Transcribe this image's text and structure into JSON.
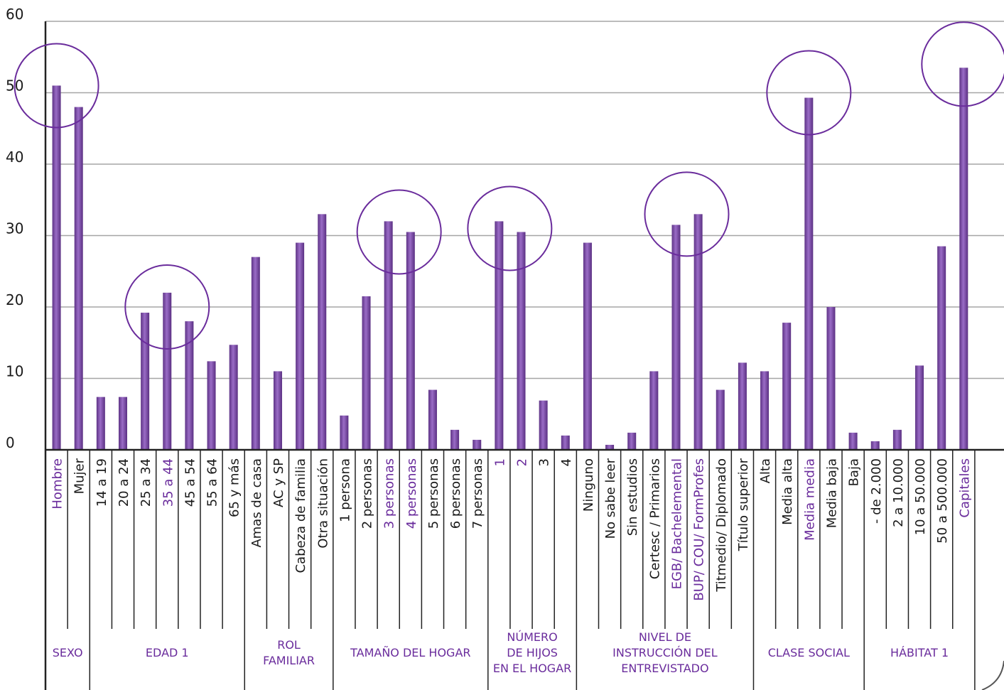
{
  "chart_data": {
    "type": "bar",
    "ylim": [
      0,
      60
    ],
    "yticks": [
      "0",
      "10",
      "20",
      "30",
      "40",
      "50",
      "60"
    ],
    "grid": true,
    "bar_color": "#7b4aa6",
    "axis_color": "#222222",
    "grid_color": "#a6a6a6",
    "circle_color": "#6a2c9c",
    "highlight_label_color": "#6a2c9c",
    "label_color": "#1a1a1a",
    "categories": [
      "Hombre",
      "Mujer",
      "14 a 19",
      "20 a 24",
      "25 a 34",
      "35 a 44",
      "45 a 54",
      "55 a 64",
      "65 y más",
      "Amas de casa",
      "AC y SP",
      "Cabeza de familia",
      "Otra situación",
      "1 persona",
      "2 personas",
      "3 personas",
      "4 personas",
      "5 personas",
      "6 personas",
      "7 personas",
      "1",
      "2",
      "3",
      "4",
      "Ninguno",
      "No sabe leer",
      "Sin estudios",
      "Certesc / Primarios",
      "EGB/ Bachelemental",
      "BUP/ COU/ FormProfes",
      "Titmedio/ Diplomado",
      "Título superior",
      "Alta",
      "Media alta",
      "Media media",
      "Media baja",
      "Baja",
      "- de 2.000",
      "2 a 10.000",
      "10 a 50.000",
      "50 a 500.000",
      "Capitales"
    ],
    "values": [
      51,
      48,
      7.4,
      7.4,
      19.2,
      22,
      18,
      12.4,
      14.7,
      27,
      11,
      29,
      33,
      4.8,
      21.5,
      32,
      30.5,
      8.4,
      2.8,
      1.4,
      32,
      30.5,
      6.9,
      2,
      29,
      0.7,
      2.4,
      11,
      31.5,
      33,
      8.4,
      12.2,
      11,
      17.8,
      49.3,
      20,
      2.4,
      1.2,
      2.8,
      11.8,
      28.5,
      53.5
    ],
    "highlighted": [
      "Hombre",
      "35 a 44",
      "3 personas",
      "4 personas",
      "1",
      "2",
      "EGB/ Bachelemental",
      "BUP/ COU/ FormProfes",
      "Media media",
      "Capitales"
    ],
    "groups": [
      {
        "lines": [
          "SEXO"
        ],
        "count": 2
      },
      {
        "lines": [
          "EDAD 1"
        ],
        "count": 7
      },
      {
        "lines": [
          "ROL",
          "FAMILIAR"
        ],
        "count": 4
      },
      {
        "lines": [
          "TAMAÑO DEL HOGAR"
        ],
        "count": 7
      },
      {
        "lines": [
          "NÚMERO",
          "DE HIJOS",
          "EN EL HOGAR"
        ],
        "count": 4
      },
      {
        "lines": [
          "NIVEL DE",
          "INSTRUCCIÓN DEL",
          "ENTREVISTADO"
        ],
        "count": 8
      },
      {
        "lines": [
          "CLASE SOCIAL"
        ],
        "count": 5
      },
      {
        "lines": [
          "HÁBITAT 1"
        ],
        "count": 5
      }
    ],
    "circles": [
      {
        "near": "Hombre",
        "value": 51
      },
      {
        "near": "35 a 44",
        "value": 20
      },
      {
        "near": "3 personas",
        "value": 30.5
      },
      {
        "near": "1",
        "value": 31
      },
      {
        "near": "EGB/ Bachelemental",
        "value": 33
      },
      {
        "near": "Media media",
        "value": 50
      },
      {
        "near": "Capitales",
        "value": 54
      }
    ]
  }
}
